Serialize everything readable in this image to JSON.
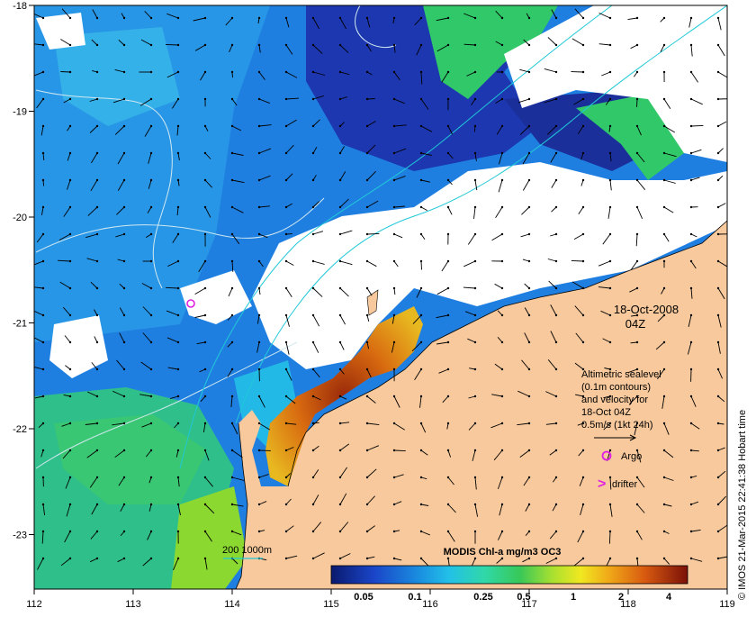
{
  "map": {
    "date_label": "18-Oct-2008",
    "time_label": "04Z",
    "x_ticks": [
      "112",
      "113",
      "114",
      "115",
      "116",
      "117",
      "118",
      "119"
    ],
    "y_ticks": [
      "-18",
      "-19",
      "-20",
      "-21",
      "-22",
      "-23"
    ],
    "credit": "© IMOS 21-Mar-2015 22:41:38 Hobart time",
    "legend_lines": [
      "Altimetric sealevel",
      "(0.1m contours)",
      "and velocity for",
      "18-Oct 04Z",
      "0.5m/s (1kt 24h)"
    ],
    "argo_label": "Argo",
    "drifter_label": "drifter",
    "drifter_symbol": ">",
    "isobath_label": "200  1000m",
    "colorbar": {
      "title": "MODIS Chl-a mg/m3 OC3",
      "ticks": [
        "0.05",
        "0.1",
        "0.25",
        "0.5",
        "1",
        "2",
        "4"
      ]
    },
    "colors": {
      "land": "#f8c99c",
      "cloud": "#ffffff",
      "ocean_deep": "#1c37b0",
      "ocean_mid": "#1f7fe0",
      "ocean_light": "#2ab0ea",
      "shelf_green": "#30c868",
      "bloom_orange": "#d47a10",
      "bloom_red": "#8b1a0c",
      "argo": "#e020e0",
      "isobath": "#20c8d8",
      "contour": "#d0e8f0"
    },
    "icons": {
      "argo": "circle-marker",
      "drifter": "chevron-marker",
      "velocity": "arrow-vector"
    }
  }
}
